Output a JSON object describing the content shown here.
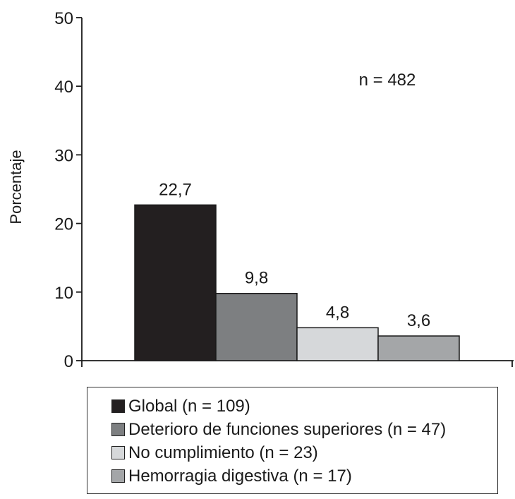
{
  "chart_data": {
    "type": "bar",
    "ylabel": "Porcentaje",
    "ylim": [
      0,
      50
    ],
    "yticks": [
      0,
      10,
      20,
      30,
      40,
      50
    ],
    "annotation": "n = 482",
    "grid": false,
    "legend_position": "bottom",
    "series": [
      {
        "name": "Global (n = 109)",
        "value": 22.7,
        "label": "22,7",
        "color": "#231f20"
      },
      {
        "name": "Deterioro de funciones superiores (n = 47)",
        "value": 9.8,
        "label": "9,8",
        "color": "#7d7f81"
      },
      {
        "name": "No cumplimiento (n = 23)",
        "value": 4.8,
        "label": "4,8",
        "color": "#d6d8da"
      },
      {
        "name": "Hemorragia digestiva (n = 17)",
        "value": 3.6,
        "label": "3,6",
        "color": "#a4a6a8"
      }
    ]
  }
}
